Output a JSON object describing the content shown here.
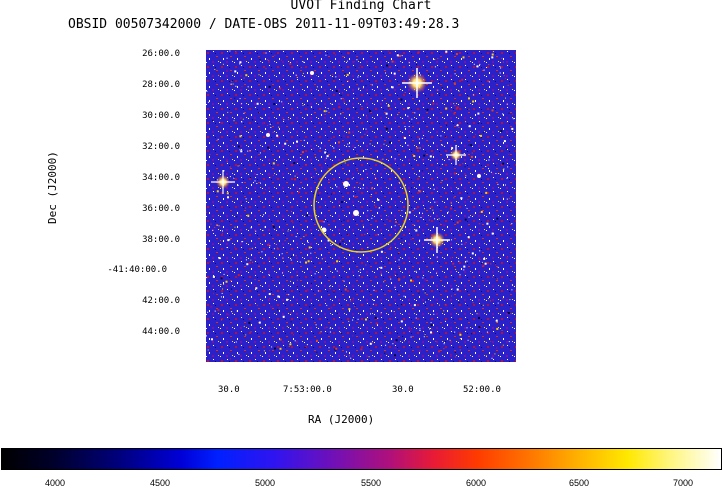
{
  "header": {
    "title": "UVOT Finding Chart",
    "subtitle": "OBSID 00507342000 / DATE-OBS 2011-11-09T03:49:28.3"
  },
  "axes": {
    "ra_label": "RA (J2000)",
    "dec_label": "Dec (J2000)",
    "dec_ticks": [
      "26:00.0",
      "28:00.0",
      "30:00.0",
      "32:00.0",
      "34:00.0",
      "36:00.0",
      "38:00.0",
      "-41:40:00.0",
      "42:00.0",
      "44:00.0"
    ],
    "ra_ticks": [
      "30.0",
      "7:53:00.0",
      "30.0",
      "52:00.0"
    ]
  },
  "colorbar": {
    "ticks": [
      "4000",
      "4500",
      "5000",
      "5500",
      "6000",
      "6500",
      "7000"
    ]
  },
  "colors": {
    "sky_background": "#2a22c8",
    "circle": "#e8d020",
    "bright_star": "#ffd27a"
  }
}
